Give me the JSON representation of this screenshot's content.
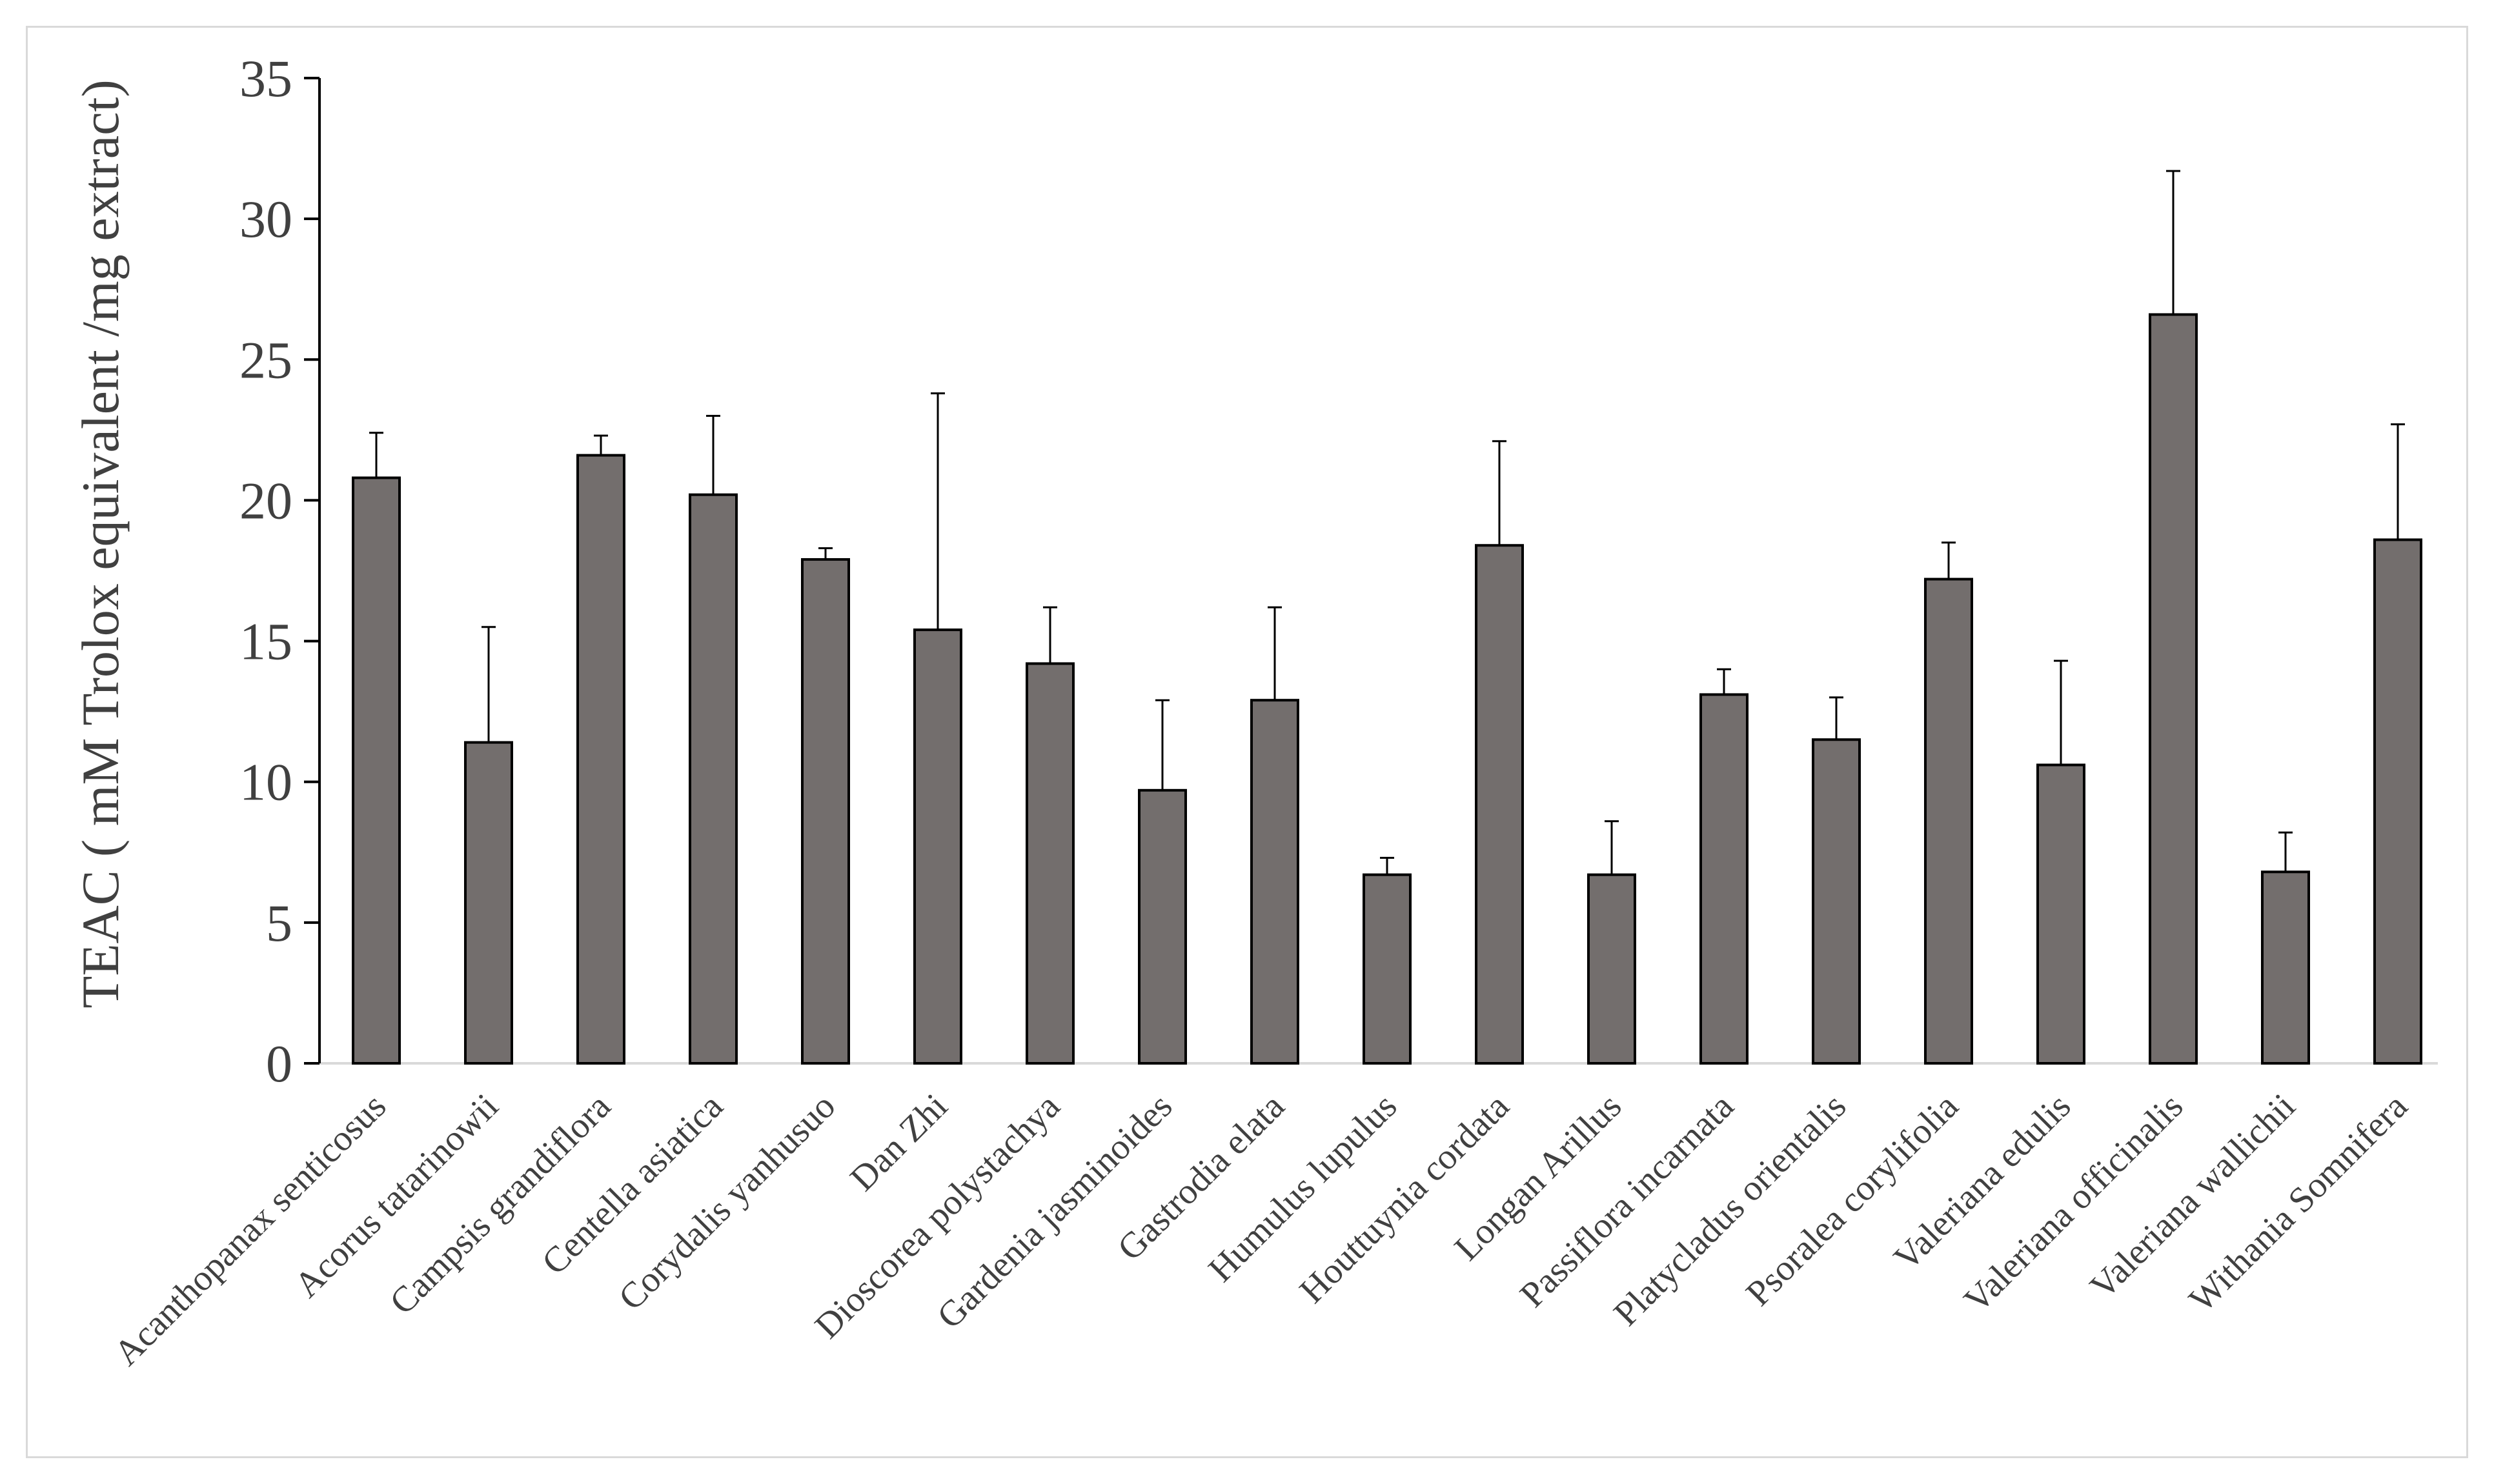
{
  "chart_data": {
    "type": "bar",
    "title": "",
    "xlabel": "",
    "ylabel": "TEAC ( mM Trolox equivalent /mg extract)",
    "ylim": [
      0,
      35
    ],
    "yticks": [
      0,
      5,
      10,
      15,
      20,
      25,
      30,
      35
    ],
    "grid": false,
    "legend": "none",
    "colors": {
      "bar": "#736e6d",
      "bar_edge": "#000000",
      "axis": "#000000",
      "baseline": "#d9d9d9",
      "error": "#000000"
    },
    "categories": [
      "Acanthopanax senticosus",
      "Acorus tatarinowii",
      "Campsis grandiflora",
      "Centella asiatica",
      "Corydalis yanhusuo",
      "Dan Zhi",
      "Dioscorea polystachya",
      "Gardenia jasminoides",
      "Gastrodia elata",
      "Humulus lupulus",
      "Houttuynia cordata",
      "Longan Arillus",
      "Passiflora incarnata",
      "Platycladus orientalis",
      "Psoralea corylifolia",
      "Valeriana edulis",
      "Valeriana officinalis",
      "Valeriana wallichii",
      "Withania Somnifera"
    ],
    "values": [
      20.8,
      11.4,
      21.6,
      20.2,
      17.9,
      15.4,
      14.2,
      9.7,
      12.9,
      6.7,
      18.4,
      6.7,
      13.1,
      11.5,
      17.2,
      10.6,
      26.6,
      6.8,
      18.6
    ],
    "errors": [
      1.6,
      4.1,
      0.7,
      2.8,
      0.4,
      8.4,
      2.0,
      3.2,
      3.3,
      0.6,
      3.7,
      1.9,
      0.9,
      1.5,
      1.3,
      3.7,
      5.1,
      1.4,
      4.1
    ]
  }
}
